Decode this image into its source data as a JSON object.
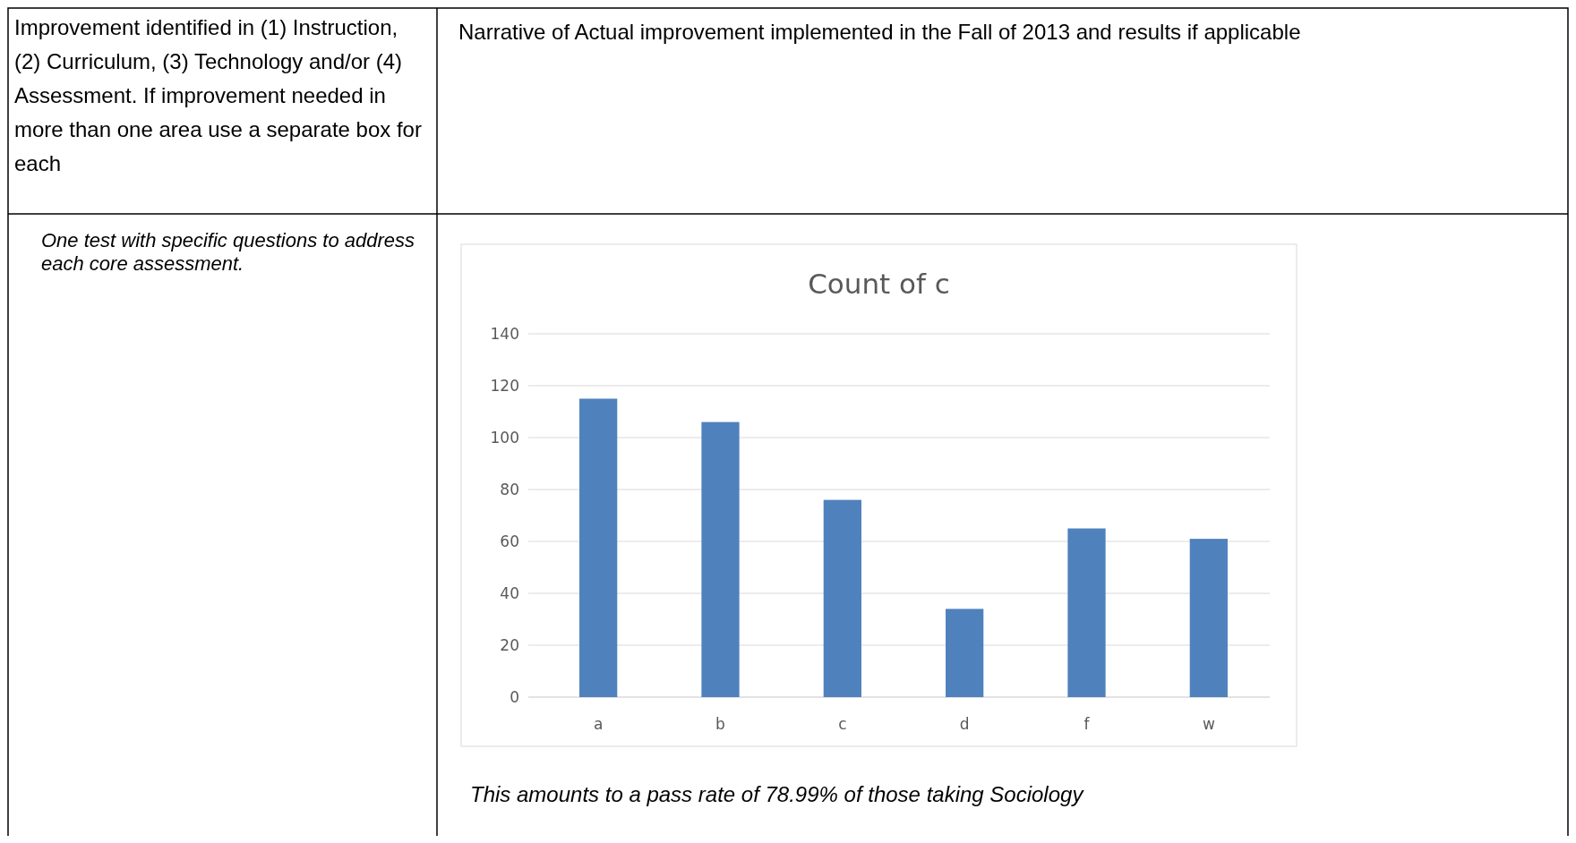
{
  "chart_data": {
    "type": "bar",
    "title": "Count of c",
    "categories": [
      "a",
      "b",
      "c",
      "d",
      "f",
      "w"
    ],
    "values": [
      115,
      106,
      76,
      34,
      65,
      61
    ],
    "color": "#4f81bd",
    "ylim": [
      0,
      140
    ],
    "yticks": [
      0,
      20,
      40,
      60,
      80,
      100,
      120,
      140
    ],
    "grid": "y",
    "annotations": [
      "Improvement identified in (1) Instruction, (2) Curriculum, (3) Technology and/or (4) Assessment. If improvement needed in more than one area use a separate box for each",
      "Narrative of Actual improvement implemented in the Fall of 2013 and results if applicable",
      "One test with specific questions to address each core assessment.",
      "This amounts to a pass rate of 78.99% of those taking Sociology"
    ]
  }
}
